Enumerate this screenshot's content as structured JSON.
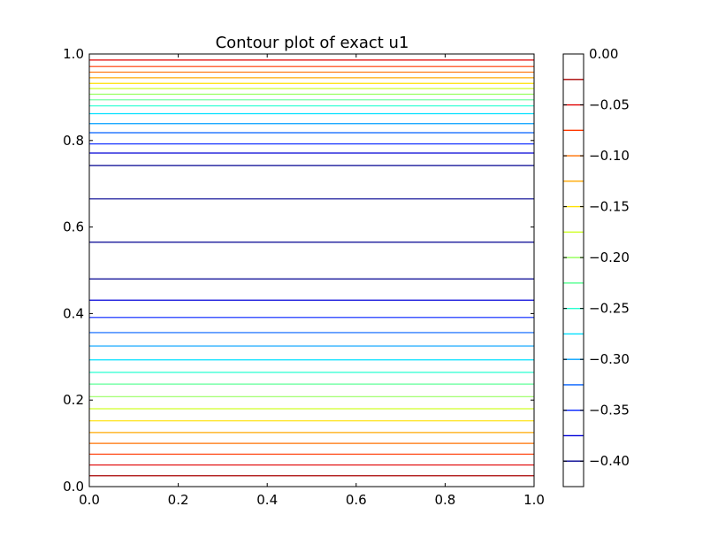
{
  "chart_data": {
    "type": "contour",
    "title": "Contour plot of exact u1",
    "xlabel": "",
    "ylabel": "",
    "xlim": [
      0.0,
      1.0
    ],
    "ylim": [
      0.0,
      1.0
    ],
    "xticks": [
      "0.0",
      "0.2",
      "0.4",
      "0.6",
      "0.8",
      "1.0"
    ],
    "xtick_values": [
      0.0,
      0.2,
      0.4,
      0.6,
      0.8,
      1.0
    ],
    "yticks": [
      "0.0",
      "0.2",
      "0.4",
      "0.6",
      "0.8",
      "1.0"
    ],
    "ytick_values": [
      0.0,
      0.2,
      0.4,
      0.6,
      0.8,
      1.0
    ],
    "grid": false,
    "colormap": "jet",
    "colorbar": {
      "vmin": -0.425,
      "vmax": 0.0,
      "tick_labels": [
        "0.00",
        "−0.05",
        "−0.10",
        "−0.15",
        "−0.20",
        "−0.25",
        "−0.30",
        "−0.35",
        "−0.40"
      ],
      "tick_values": [
        0.0,
        -0.05,
        -0.1,
        -0.15,
        -0.2,
        -0.25,
        -0.3,
        -0.35,
        -0.4
      ],
      "levels": [
        -0.4,
        -0.375,
        -0.35,
        -0.325,
        -0.3,
        -0.275,
        -0.25,
        -0.225,
        -0.2,
        -0.175,
        -0.15,
        -0.125,
        -0.1,
        -0.075,
        -0.05,
        -0.025
      ],
      "level_colors": [
        "#000090",
        "#0000d8",
        "#0020ff",
        "#0060ff",
        "#00a0ff",
        "#00e0ff",
        "#28ffd0",
        "#60ff98",
        "#98ff60",
        "#d0ff28",
        "#ffe000",
        "#ffa800",
        "#ff7000",
        "#ff3800",
        "#e00000",
        "#a80000"
      ]
    },
    "contour_lines": [
      {
        "y": 0.025,
        "color": "#a80000"
      },
      {
        "y": 0.05,
        "color": "#e00000"
      },
      {
        "y": 0.075,
        "color": "#ff3800"
      },
      {
        "y": 0.1,
        "color": "#ff7000"
      },
      {
        "y": 0.125,
        "color": "#ffa800"
      },
      {
        "y": 0.152,
        "color": "#ffe000"
      },
      {
        "y": 0.18,
        "color": "#d0ff28"
      },
      {
        "y": 0.208,
        "color": "#98ff60"
      },
      {
        "y": 0.237,
        "color": "#60ff98"
      },
      {
        "y": 0.264,
        "color": "#28ffd0"
      },
      {
        "y": 0.293,
        "color": "#00e0ff"
      },
      {
        "y": 0.325,
        "color": "#00a0ff"
      },
      {
        "y": 0.356,
        "color": "#0060ff"
      },
      {
        "y": 0.391,
        "color": "#0020ff"
      },
      {
        "y": 0.431,
        "color": "#0000d8"
      },
      {
        "y": 0.48,
        "color": "#000090"
      },
      {
        "y": 0.565,
        "color": "#000090"
      },
      {
        "y": 0.665,
        "color": "#000090"
      },
      {
        "y": 0.742,
        "color": "#000090"
      },
      {
        "y": 0.771,
        "color": "#0000d8"
      },
      {
        "y": 0.792,
        "color": "#0020ff"
      },
      {
        "y": 0.818,
        "color": "#0060ff"
      },
      {
        "y": 0.839,
        "color": "#00a0ff"
      },
      {
        "y": 0.862,
        "color": "#00e0ff"
      },
      {
        "y": 0.88,
        "color": "#28ffd0"
      },
      {
        "y": 0.894,
        "color": "#60ff98"
      },
      {
        "y": 0.907,
        "color": "#98ff60"
      },
      {
        "y": 0.92,
        "color": "#d0ff28"
      },
      {
        "y": 0.932,
        "color": "#ffe000"
      },
      {
        "y": 0.945,
        "color": "#ffa800"
      },
      {
        "y": 0.958,
        "color": "#ff7000"
      },
      {
        "y": 0.971,
        "color": "#ff3800"
      },
      {
        "y": 0.986,
        "color": "#e00000"
      }
    ]
  }
}
